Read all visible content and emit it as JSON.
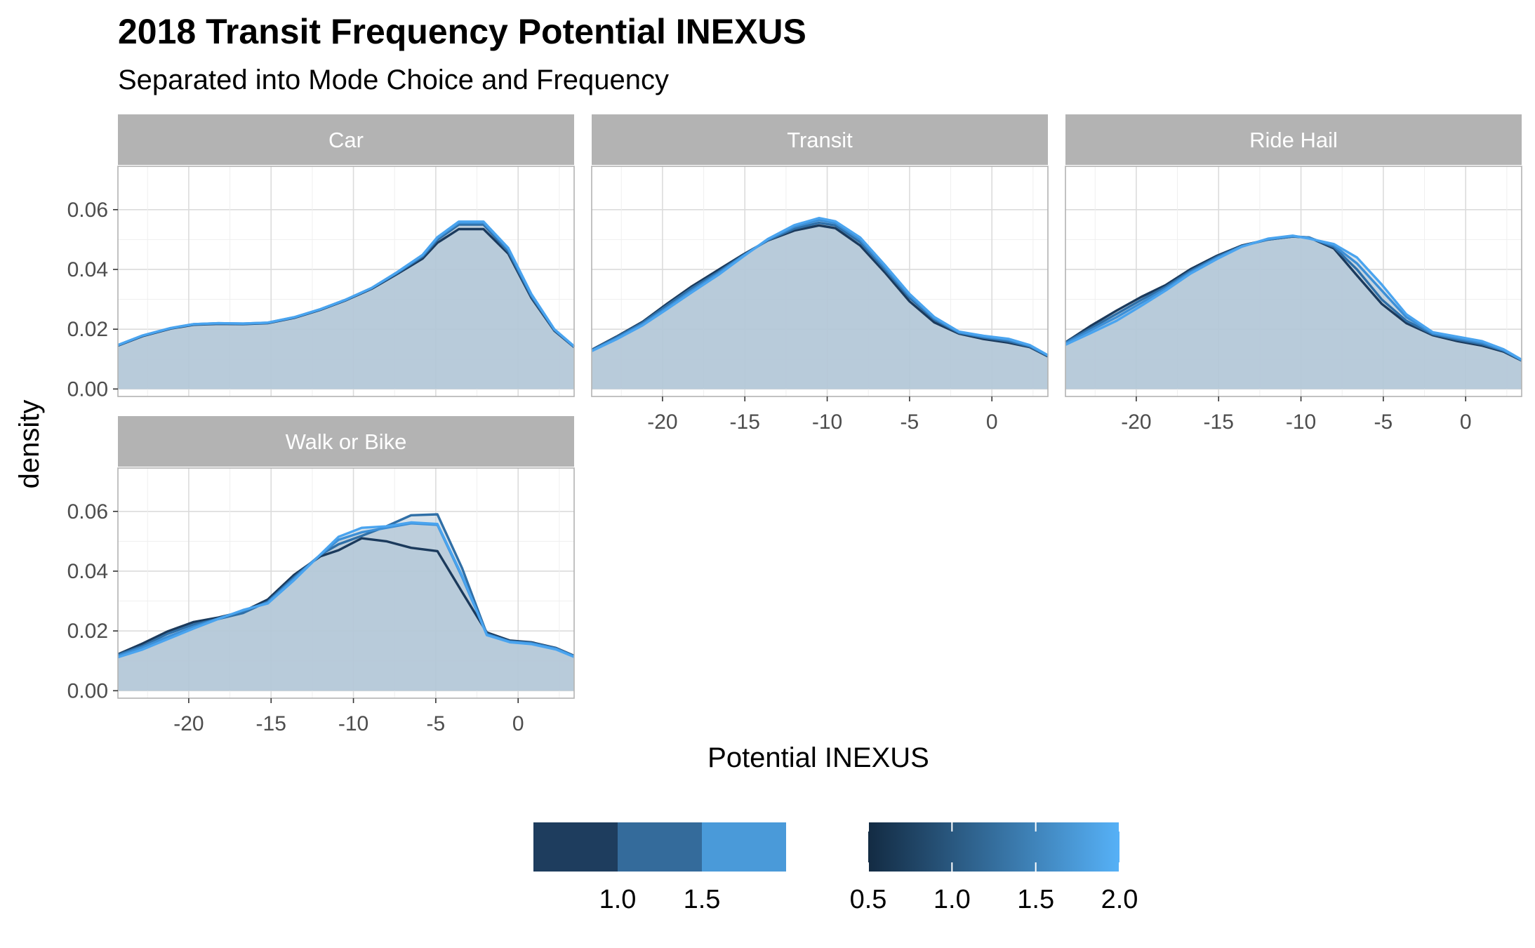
{
  "chart_data": {
    "type": "area",
    "title": "2018 Transit Frequency Potential INEXUS",
    "subtitle": "Separated into Mode Choice and Frequency",
    "xlabel": "Potential INEXUS",
    "ylabel": "density",
    "xlim": [
      -24.3,
      3.4
    ],
    "ylim": [
      -0.0025,
      0.0745
    ],
    "x_ticks": [
      -20,
      -15,
      -10,
      -5,
      0
    ],
    "y_ticks": [
      0.0,
      0.02,
      0.04,
      0.06
    ],
    "y_tick_labels": [
      "0.00",
      "0.02",
      "0.04",
      "0.06"
    ],
    "grid": true,
    "fill_color": "#b4c7d8",
    "series_colors": [
      "#1b3a5c",
      "#2f6fa7",
      "#3d8fd6",
      "#4aa4ef"
    ],
    "panels": [
      {
        "label": "Car",
        "x": [
          -24.3,
          -22.8,
          -21.1,
          -19.7,
          -18.2,
          -16.7,
          -15.2,
          -13.6,
          -12.0,
          -10.5,
          -8.9,
          -7.4,
          -5.8,
          -4.9,
          -3.6,
          -2.1,
          -0.6,
          0.8,
          2.2,
          3.4
        ],
        "series": [
          {
            "values": [
              0.0145,
              0.0177,
              0.0202,
              0.0215,
              0.0218,
              0.0217,
              0.022,
              0.0238,
              0.0265,
              0.0296,
              0.0335,
              0.0383,
              0.0436,
              0.0489,
              0.0535,
              0.0535,
              0.0453,
              0.0305,
              0.0195,
              0.014
            ]
          },
          {
            "values": [
              0.0146,
              0.0178,
              0.0203,
              0.0216,
              0.0219,
              0.0218,
              0.0221,
              0.0239,
              0.0266,
              0.0297,
              0.0337,
              0.0386,
              0.0443,
              0.0499,
              0.055,
              0.055,
              0.046,
              0.031,
              0.0197,
              0.0141
            ]
          },
          {
            "values": [
              0.0147,
              0.0179,
              0.0204,
              0.0217,
              0.022,
              0.0219,
              0.0222,
              0.024,
              0.0267,
              0.0298,
              0.0338,
              0.0388,
              0.0447,
              0.0505,
              0.0556,
              0.0556,
              0.0468,
              0.0315,
              0.0199,
              0.0142
            ]
          },
          {
            "values": [
              0.0147,
              0.0179,
              0.0204,
              0.0217,
              0.022,
              0.0219,
              0.0222,
              0.024,
              0.0267,
              0.0298,
              0.0338,
              0.0389,
              0.0449,
              0.0508,
              0.056,
              0.056,
              0.0472,
              0.0318,
              0.02,
              0.0143
            ]
          }
        ]
      },
      {
        "label": "Transit",
        "x": [
          -24.3,
          -22.8,
          -21.2,
          -19.7,
          -18.2,
          -16.6,
          -15.1,
          -13.6,
          -12.0,
          -10.5,
          -9.5,
          -8.0,
          -6.5,
          -5.0,
          -3.5,
          -2.0,
          -0.5,
          1.0,
          2.3,
          3.4
        ],
        "series": [
          {
            "values": [
              0.0131,
              0.0175,
              0.0225,
              0.0286,
              0.0344,
              0.0399,
              0.045,
              0.0497,
              0.053,
              0.0547,
              0.0538,
              0.048,
              0.039,
              0.0293,
              0.0223,
              0.0185,
              0.0167,
              0.0155,
              0.014,
              0.0109
            ]
          },
          {
            "values": [
              0.013,
              0.0173,
              0.0222,
              0.0281,
              0.0338,
              0.0392,
              0.0447,
              0.0498,
              0.0536,
              0.0556,
              0.0547,
              0.0491,
              0.04,
              0.0305,
              0.0232,
              0.0188,
              0.0172,
              0.016,
              0.0142,
              0.0111
            ]
          },
          {
            "values": [
              0.0128,
              0.0169,
              0.0217,
              0.0273,
              0.033,
              0.0387,
              0.0445,
              0.05,
              0.0543,
              0.0565,
              0.0555,
              0.05,
              0.0408,
              0.0312,
              0.0237,
              0.019,
              0.0175,
              0.0165,
              0.0145,
              0.0112
            ]
          },
          {
            "values": [
              0.0127,
              0.0166,
              0.0213,
              0.0268,
              0.0324,
              0.0382,
              0.0443,
              0.0502,
              0.0548,
              0.0572,
              0.0561,
              0.0507,
              0.0415,
              0.0318,
              0.0241,
              0.0192,
              0.0178,
              0.0168,
              0.0147,
              0.0113
            ]
          }
        ]
      },
      {
        "label": "Ride Hail",
        "x": [
          -24.3,
          -22.8,
          -21.2,
          -19.7,
          -18.2,
          -16.7,
          -15.1,
          -13.6,
          -12.0,
          -10.5,
          -9.5,
          -8.0,
          -6.6,
          -5.1,
          -3.6,
          -2.0,
          -0.5,
          1.0,
          2.3,
          3.4
        ],
        "series": [
          {
            "values": [
              0.0156,
              0.021,
              0.0262,
              0.0308,
              0.0348,
              0.0401,
              0.0446,
              0.048,
              0.05,
              0.051,
              0.0507,
              0.047,
              0.038,
              0.0285,
              0.022,
              0.018,
              0.016,
              0.0145,
              0.0125,
              0.0095
            ]
          },
          {
            "values": [
              0.0155,
              0.0202,
              0.0251,
              0.0298,
              0.0342,
              0.0395,
              0.0442,
              0.0478,
              0.05,
              0.051,
              0.0507,
              0.0475,
              0.04,
              0.03,
              0.0228,
              0.0183,
              0.0165,
              0.015,
              0.0128,
              0.0096
            ]
          },
          {
            "values": [
              0.0152,
              0.0195,
              0.024,
              0.0288,
              0.0336,
              0.039,
              0.0438,
              0.0477,
              0.0502,
              0.0512,
              0.0505,
              0.048,
              0.042,
              0.033,
              0.024,
              0.0186,
              0.017,
              0.0155,
              0.013,
              0.0097
            ]
          },
          {
            "values": [
              0.0148,
              0.0186,
              0.0228,
              0.0278,
              0.033,
              0.0386,
              0.0435,
              0.0476,
              0.0503,
              0.0513,
              0.0503,
              0.0485,
              0.044,
              0.035,
              0.025,
              0.019,
              0.0175,
              0.016,
              0.0133,
              0.0098
            ]
          }
        ]
      },
      {
        "label": "Walk or Bike",
        "x": [
          -24.3,
          -22.8,
          -21.3,
          -19.7,
          -18.2,
          -16.7,
          -15.2,
          -13.6,
          -12.0,
          -10.9,
          -9.5,
          -8.0,
          -6.5,
          -4.9,
          -3.4,
          -1.9,
          -0.5,
          0.8,
          2.3,
          3.4
        ],
        "series": [
          {
            "values": [
              0.0122,
              0.0158,
              0.0198,
              0.023,
              0.0245,
              0.0265,
              0.0305,
              0.0388,
              0.045,
              0.047,
              0.051,
              0.05,
              0.0478,
              0.0467,
              0.033,
              0.0195,
              0.0168,
              0.0162,
              0.0143,
              0.0117
            ]
          },
          {
            "values": [
              0.012,
              0.015,
              0.019,
              0.0222,
              0.024,
              0.026,
              0.0298,
              0.038,
              0.0455,
              0.049,
              0.0518,
              0.055,
              0.0587,
              0.059,
              0.041,
              0.019,
              0.0165,
              0.016,
              0.0142,
              0.0116
            ]
          },
          {
            "values": [
              0.0116,
              0.0145,
              0.018,
              0.0214,
              0.0242,
              0.0268,
              0.0295,
              0.0375,
              0.0455,
              0.0505,
              0.053,
              0.0545,
              0.056,
              0.0555,
              0.038,
              0.0188,
              0.0164,
              0.0158,
              0.014,
              0.0115
            ]
          },
          {
            "values": [
              0.0112,
              0.0138,
              0.0172,
              0.0208,
              0.024,
              0.027,
              0.0292,
              0.037,
              0.0456,
              0.0515,
              0.0545,
              0.055,
              0.0563,
              0.0558,
              0.0385,
              0.0186,
              0.0162,
              0.0156,
              0.0138,
              0.0113
            ]
          }
        ]
      }
    ],
    "legends": [
      {
        "type": "discrete",
        "colors": [
          "#1e3d5e",
          "#346b9b",
          "#4a9ad9"
        ],
        "labels": [
          "1.0",
          "1.5"
        ]
      },
      {
        "type": "continuous",
        "colors": [
          "#132b43",
          "#56b1f7"
        ],
        "labels": [
          "0.5",
          "1.0",
          "1.5",
          "2.0"
        ],
        "range": [
          0.5,
          2.0
        ]
      }
    ],
    "legend_position": "bottom"
  }
}
